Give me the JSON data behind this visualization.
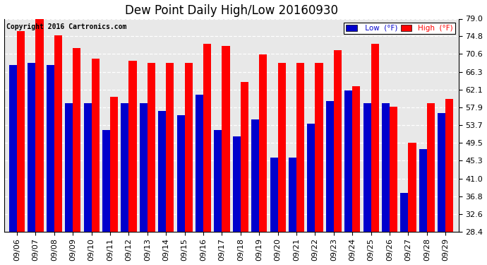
{
  "title": "Dew Point Daily High/Low 20160930",
  "copyright": "Copyright 2016 Cartronics.com",
  "dates": [
    "09/06",
    "09/07",
    "09/08",
    "09/09",
    "09/10",
    "09/11",
    "09/12",
    "09/13",
    "09/14",
    "09/15",
    "09/16",
    "09/17",
    "09/18",
    "09/19",
    "09/20",
    "09/21",
    "09/22",
    "09/23",
    "09/24",
    "09/25",
    "09/26",
    "09/27",
    "09/28",
    "09/29"
  ],
  "high": [
    76.0,
    79.0,
    75.0,
    72.0,
    69.5,
    60.5,
    69.0,
    68.5,
    68.5,
    68.5,
    73.0,
    72.5,
    64.0,
    70.5,
    68.5,
    68.5,
    68.5,
    71.5,
    63.0,
    73.0,
    58.0,
    49.5,
    59.0,
    60.0
  ],
  "low": [
    68.0,
    68.5,
    68.0,
    59.0,
    59.0,
    52.5,
    59.0,
    59.0,
    57.0,
    56.0,
    61.0,
    52.5,
    51.0,
    55.0,
    46.0,
    46.0,
    54.0,
    59.5,
    62.0,
    59.0,
    59.0,
    37.5,
    48.0,
    56.5
  ],
  "ymin": 28.4,
  "ymax": 79.0,
  "yticks": [
    28.4,
    32.6,
    36.8,
    41.0,
    45.3,
    49.5,
    53.7,
    57.9,
    62.1,
    66.3,
    70.6,
    74.8,
    79.0
  ],
  "high_color": "#ff0000",
  "low_color": "#0000cc",
  "bg_color": "#ffffff",
  "plot_bg_color": "#e8e8e8",
  "grid_color": "#ffffff",
  "bar_width": 0.42,
  "title_fontsize": 12,
  "tick_fontsize": 8,
  "legend_high_color": "#ff0000",
  "legend_low_color": "#0000cc"
}
